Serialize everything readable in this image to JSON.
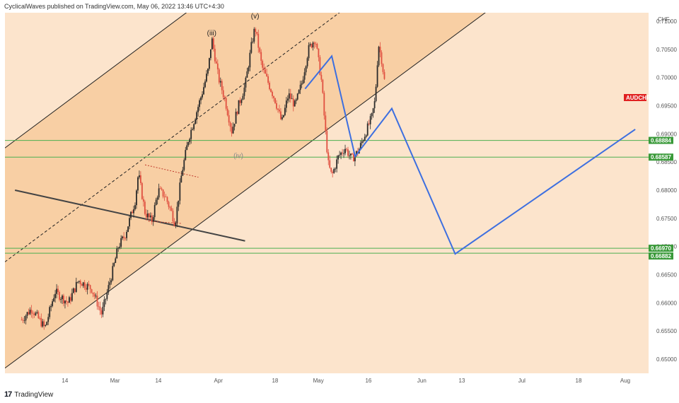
{
  "header": {
    "published": "CyclicalWaves published on TradingView.com, May 06, 2022 13:46 UTC+4:30"
  },
  "footer": {
    "logo_text": "TradingView"
  },
  "symbol": "AUDCHF",
  "currency": "CHF",
  "colors": {
    "channel_fill": "#f8cfa4",
    "background_fill": "#fce4cc",
    "up_candle": "#2a2a2a",
    "down_candle": "#e05040",
    "projection": "#3d6fe0",
    "support_line": "#4caf50",
    "symbol_tag": "#e02020",
    "level_tag": "#3a9a3a"
  },
  "chart_data": {
    "type": "candlestick",
    "symbol": "AUDCHF",
    "y_axis": {
      "unit": "CHF",
      "range": [
        0.6475,
        0.7115
      ],
      "ticks": [
        "0.71000",
        "0.70500",
        "0.70000",
        "0.69500",
        "0.69000",
        "0.68500",
        "0.68000",
        "0.67500",
        "0.67000",
        "0.66500",
        "0.66000",
        "0.65500",
        "0.65000"
      ]
    },
    "x_axis": {
      "ticks": [
        {
          "label": "14",
          "date": "2022-02-14"
        },
        {
          "label": "Mar",
          "date": "2022-03-01"
        },
        {
          "label": "14",
          "date": "2022-03-14"
        },
        {
          "label": "Apr",
          "date": "2022-04-01"
        },
        {
          "label": "18",
          "date": "2022-04-18"
        },
        {
          "label": "May",
          "date": "2022-05-01"
        },
        {
          "label": "16",
          "date": "2022-05-16"
        },
        {
          "label": "Jun",
          "date": "2022-06-01"
        },
        {
          "label": "13",
          "date": "2022-06-13"
        },
        {
          "label": "Jul",
          "date": "2022-07-01"
        },
        {
          "label": "18",
          "date": "2022-07-18"
        },
        {
          "label": "Aug",
          "date": "2022-08-01"
        }
      ]
    },
    "price_path": [
      [
        "2022-02-01",
        0.657
      ],
      [
        "2022-02-04",
        0.659
      ],
      [
        "2022-02-08",
        0.6555
      ],
      [
        "2022-02-11",
        0.662
      ],
      [
        "2022-02-15",
        0.66
      ],
      [
        "2022-02-18",
        0.664
      ],
      [
        "2022-02-22",
        0.6625
      ],
      [
        "2022-02-25",
        0.658
      ],
      [
        "2022-02-28",
        0.665
      ],
      [
        "2022-03-02",
        0.67
      ],
      [
        "2022-03-04",
        0.672
      ],
      [
        "2022-03-07",
        0.678
      ],
      [
        "2022-03-08",
        0.683
      ],
      [
        "2022-03-10",
        0.676
      ],
      [
        "2022-03-12",
        0.6745
      ],
      [
        "2022-03-14",
        0.68
      ],
      [
        "2022-03-16",
        0.679
      ],
      [
        "2022-03-18",
        0.676
      ],
      [
        "2022-03-19",
        0.674
      ],
      [
        "2022-03-21",
        0.683
      ],
      [
        "2022-03-23",
        0.689
      ],
      [
        "2022-03-25",
        0.693
      ],
      [
        "2022-03-27",
        0.697
      ],
      [
        "2022-03-29",
        0.7015
      ],
      [
        "2022-03-30",
        0.707
      ],
      [
        "2022-04-01",
        0.7
      ],
      [
        "2022-04-03",
        0.696
      ],
      [
        "2022-04-05",
        0.6905
      ],
      [
        "2022-04-07",
        0.695
      ],
      [
        "2022-04-09",
        0.6985
      ],
      [
        "2022-04-11",
        0.706
      ],
      [
        "2022-04-12",
        0.709
      ],
      [
        "2022-04-14",
        0.702
      ],
      [
        "2022-04-16",
        0.699
      ],
      [
        "2022-04-18",
        0.696
      ],
      [
        "2022-04-20",
        0.692
      ],
      [
        "2022-04-22",
        0.697
      ],
      [
        "2022-04-24",
        0.695
      ],
      [
        "2022-04-26",
        0.699
      ],
      [
        "2022-04-28",
        0.705
      ],
      [
        "2022-04-30",
        0.707
      ],
      [
        "2022-05-02",
        0.699
      ],
      [
        "2022-05-03",
        0.691
      ],
      [
        "2022-05-04",
        0.6845
      ],
      [
        "2022-05-05",
        0.6825
      ],
      [
        "2022-05-07",
        0.686
      ],
      [
        "2022-05-09",
        0.6875
      ],
      [
        "2022-05-11",
        0.6855
      ],
      [
        "2022-05-13",
        0.687
      ],
      [
        "2022-05-15",
        0.69
      ],
      [
        "2022-05-17",
        0.693
      ],
      [
        "2022-05-18",
        0.696
      ],
      [
        "2022-05-19",
        0.706
      ],
      [
        "2022-05-20",
        0.703
      ],
      [
        "2022-05-21",
        0.6985
      ]
    ],
    "horizontal_levels": [
      {
        "value": 0.68884,
        "label": "0.68884"
      },
      {
        "value": 0.68587,
        "label": "0.68587"
      },
      {
        "value": 0.6697,
        "label": "0.66970"
      },
      {
        "value": 0.66882,
        "label": "0.66882"
      }
    ],
    "current_price_tag": "AUDCHF",
    "wave_labels": [
      {
        "label": "(iii)",
        "date": "2022-03-30",
        "price": 0.7075
      },
      {
        "label": "(v)",
        "date": "2022-04-12",
        "price": 0.7105
      },
      {
        "label": "(iv)",
        "date": "2022-04-07",
        "price": 0.6857
      }
    ],
    "projection_path": [
      [
        "2022-04-27",
        0.698
      ],
      [
        "2022-05-05",
        0.7038
      ],
      [
        "2022-05-12",
        0.686
      ],
      [
        "2022-05-23",
        0.6945
      ],
      [
        "2022-06-11",
        0.6687
      ],
      [
        "2022-08-04",
        0.6908
      ]
    ],
    "channel": {
      "upper": [
        [
          "2022-01-27",
          0.6875
        ],
        [
          "2022-05-01",
          0.729
        ]
      ],
      "lower": [
        [
          "2022-01-29",
          0.6493
        ],
        [
          "2022-06-20",
          0.7115
        ]
      ],
      "mid": [
        [
          "2022-01-30",
          0.6686
        ],
        [
          "2022-05-22",
          0.718
        ]
      ]
    },
    "trendline": [
      [
        "2022-01-30",
        0.68
      ],
      [
        "2022-04-09",
        0.671
      ]
    ],
    "triangle": {
      "upper": [
        [
          "2022-03-10",
          0.6845
        ],
        [
          "2022-03-26",
          0.6823
        ]
      ],
      "lower": [
        [
          "2022-03-11",
          0.6745
        ],
        [
          "2022-03-21",
          0.6741
        ]
      ]
    }
  }
}
